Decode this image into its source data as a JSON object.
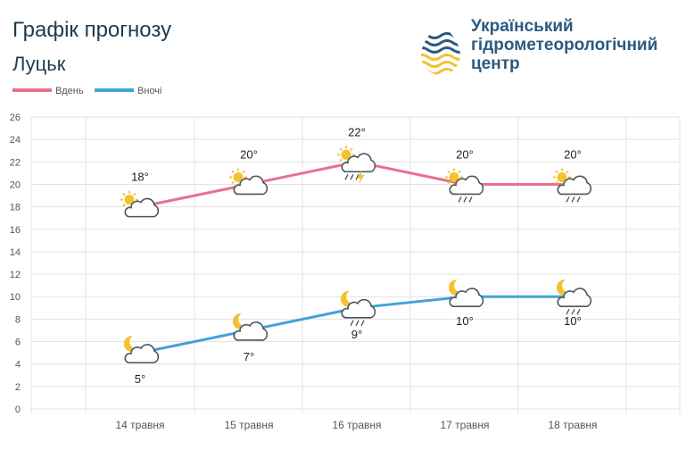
{
  "header": {
    "title": "Графік прогнозу",
    "city": "Луцьк"
  },
  "logo": {
    "line1": "Український",
    "line2": "гідрометеорологічний",
    "line3": "центр"
  },
  "colors": {
    "day": "#e8718c",
    "night": "#44a2d8",
    "grid": "#e3e3e3",
    "text": "#555555"
  },
  "chart_data": {
    "type": "line",
    "categories": [
      "14 травня",
      "15 травня",
      "16 травня",
      "17 травня",
      "18 травня"
    ],
    "ylim": [
      0,
      26
    ],
    "yticks": [
      0,
      2,
      4,
      6,
      8,
      10,
      12,
      14,
      16,
      18,
      20,
      22,
      24,
      26
    ],
    "legend_position": "top-left",
    "grid": true,
    "series": [
      {
        "name": "Вдень",
        "values": [
          18,
          20,
          22,
          20,
          20
        ],
        "labels": [
          "18°",
          "20°",
          "22°",
          "20°",
          "20°"
        ],
        "icons": [
          "sun-cloud-icon",
          "sun-cloud-icon",
          "sun-thunderstorm-icon",
          "sun-rain-icon",
          "sun-rain-icon"
        ]
      },
      {
        "name": "Вночі",
        "values": [
          5,
          7,
          9,
          10,
          10
        ],
        "labels": [
          "5°",
          "7°",
          "9°",
          "10°",
          "10°"
        ],
        "icons": [
          "moon-cloud-icon",
          "moon-cloud-icon",
          "moon-rain-icon",
          "moon-cloud-icon",
          "moon-rain-icon"
        ]
      }
    ]
  }
}
